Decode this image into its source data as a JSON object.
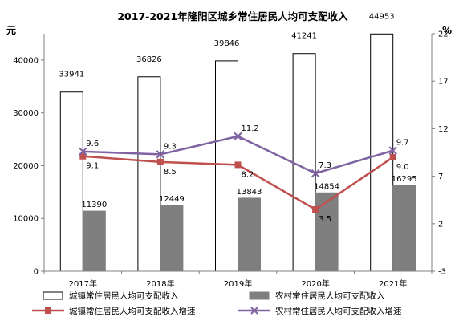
{
  "chart_data": {
    "type": "bar",
    "title": "2017-2021年隆阳区城乡常住居民人均可支配收入",
    "categories": [
      "2017年",
      "2018年",
      "2019年",
      "2020年",
      "2021年"
    ],
    "y_left": {
      "unit": "元",
      "range": [
        0,
        45000
      ],
      "ticks": [
        "0",
        "10000",
        "20000",
        "30000",
        "40000"
      ]
    },
    "y_right": {
      "unit": "%",
      "range": [
        -3,
        22
      ],
      "ticks": [
        "-3",
        "2",
        "7",
        "12",
        "17",
        "22"
      ]
    },
    "series": [
      {
        "name": "城镇常住居民人均可支配收入",
        "kind": "bar",
        "axis": "left",
        "color": "#ffffff",
        "stroke": "#000000",
        "values": [
          33941,
          36826,
          39846,
          41241,
          44953
        ],
        "labels": [
          "33941",
          "36826",
          "39846",
          "41241",
          "44953"
        ]
      },
      {
        "name": "农村常住居民人均可支配收入",
        "kind": "bar",
        "axis": "left",
        "color": "#7f7f7f",
        "stroke": "#7f7f7f",
        "values": [
          11390,
          12449,
          13843,
          14854,
          16295
        ],
        "labels": [
          "11390",
          "12449",
          "13843",
          "14854",
          "16295"
        ]
      },
      {
        "name": "城镇常住居民人均可支配收入增速",
        "kind": "line",
        "axis": "right",
        "color": "#c0504d",
        "marker": "square",
        "values": [
          9.1,
          8.5,
          8.2,
          3.5,
          9.0
        ],
        "labels": [
          "9.1",
          "8.5",
          "8.2",
          "3.5",
          "9.0"
        ]
      },
      {
        "name": "农村常住居民人均可支配收入增速",
        "kind": "line",
        "axis": "right",
        "color": "#8064a2",
        "marker": "x",
        "values": [
          9.6,
          9.3,
          11.2,
          7.3,
          9.7
        ],
        "labels": [
          "9.6",
          "9.3",
          "11.2",
          "7.3",
          "9.7"
        ]
      }
    ],
    "grid": false,
    "legend": "bottom"
  }
}
